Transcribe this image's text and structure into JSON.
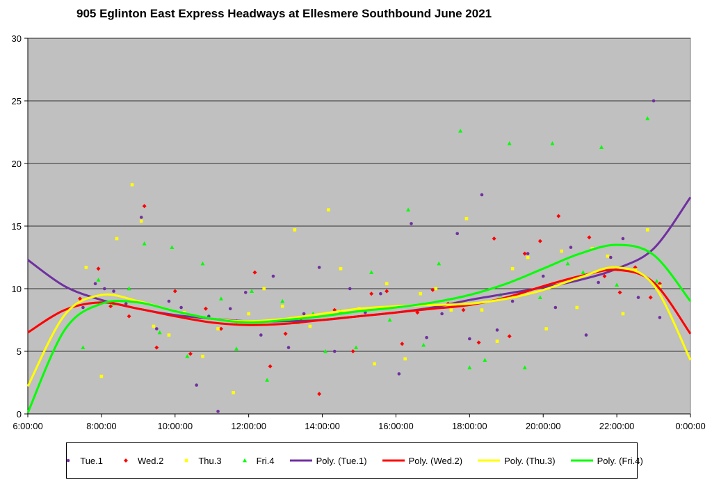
{
  "chart_data": {
    "type": "scatter",
    "title": "905 Eglinton East Express Headways at Ellesmere Southbound June 2021",
    "xlabel": "",
    "ylabel": "",
    "xlim": [
      "6:00:00",
      "0:00:00"
    ],
    "ylim": [
      0,
      30
    ],
    "x_tick_labels": [
      "6:00:00",
      "8:00:00",
      "10:00:00",
      "12:00:00",
      "14:00:00",
      "16:00:00",
      "18:00:00",
      "20:00:00",
      "22:00:00",
      "0:00:00"
    ],
    "y_tick_labels": [
      "0",
      "5",
      "10",
      "15",
      "20",
      "25",
      "30"
    ],
    "grid": "horizontal",
    "legend_position": "bottom",
    "series": [
      {
        "name": "Tue.1",
        "kind": "points",
        "color": "#7030a0",
        "marker": "circle",
        "x": [
          "7:30",
          "7:50",
          "8:05",
          "8:20",
          "8:40",
          "9:05",
          "9:30",
          "9:50",
          "10:10",
          "10:35",
          "10:55",
          "11:10",
          "11:30",
          "11:55",
          "12:20",
          "12:40",
          "13:05",
          "13:30",
          "13:55",
          "14:20",
          "14:45",
          "15:10",
          "15:35",
          "16:05",
          "16:25",
          "16:50",
          "17:15",
          "17:40",
          "18:00",
          "18:20",
          "18:45",
          "19:10",
          "19:35",
          "20:00",
          "20:20",
          "20:45",
          "21:10",
          "21:30",
          "21:50",
          "22:10",
          "22:35",
          "23:00",
          "23:10"
        ],
        "y": [
          8.5,
          10.4,
          10,
          9.8,
          8.8,
          15.7,
          6.8,
          9,
          8.5,
          2.3,
          7.8,
          0.2,
          8.4,
          9.7,
          6.3,
          11,
          5.3,
          8,
          11.7,
          5,
          10,
          8.1,
          9.6,
          3.2,
          15.2,
          6.1,
          8,
          14.4,
          6,
          17.5,
          6.7,
          9,
          12.8,
          11,
          8.5,
          13.3,
          6.3,
          10.5,
          12.5,
          14,
          9.3,
          25,
          7.7
        ]
      },
      {
        "name": "Wed.2",
        "kind": "points",
        "color": "#ff0000",
        "marker": "diamond",
        "x": [
          "7:25",
          "7:55",
          "8:15",
          "8:45",
          "9:10",
          "9:30",
          "10:00",
          "10:25",
          "10:50",
          "11:15",
          "11:40",
          "12:10",
          "12:35",
          "13:00",
          "13:25",
          "13:55",
          "14:20",
          "14:50",
          "15:20",
          "15:45",
          "16:10",
          "16:35",
          "17:00",
          "17:25",
          "17:50",
          "18:15",
          "18:40",
          "19:05",
          "19:30",
          "19:55",
          "20:25",
          "20:50",
          "21:15",
          "21:40",
          "22:05",
          "22:30",
          "22:55",
          "23:10"
        ],
        "y": [
          9.2,
          11.6,
          8.6,
          7.8,
          16.6,
          5.3,
          9.8,
          4.8,
          8.4,
          6.8,
          7.4,
          11.3,
          3.8,
          6.4,
          7.6,
          1.6,
          8.3,
          5,
          9.6,
          9.8,
          5.6,
          8.1,
          9.9,
          8.8,
          8.3,
          5.7,
          14,
          6.2,
          12.8,
          13.8,
          15.8,
          10.8,
          14.1,
          11,
          9.7,
          11.7,
          9.3,
          10.4
        ]
      },
      {
        "name": "Thu.3",
        "kind": "points",
        "color": "#ffff00",
        "marker": "square",
        "x": [
          "7:35",
          "8:00",
          "8:25",
          "8:50",
          "9:05",
          "9:25",
          "9:50",
          "10:15",
          "10:45",
          "11:10",
          "11:35",
          "12:00",
          "12:25",
          "12:55",
          "13:15",
          "13:40",
          "14:10",
          "14:30",
          "15:00",
          "15:25",
          "15:45",
          "16:15",
          "16:40",
          "17:05",
          "17:30",
          "17:55",
          "18:20",
          "18:45",
          "19:10",
          "19:35",
          "20:05",
          "20:30",
          "20:55",
          "21:20",
          "21:45",
          "22:10",
          "22:30",
          "22:50",
          "23:10"
        ],
        "y": [
          11.7,
          3,
          14,
          18.3,
          15.4,
          7,
          6.3,
          8.1,
          4.6,
          6.8,
          1.7,
          8,
          10,
          8.6,
          14.7,
          7,
          16.3,
          11.6,
          8.4,
          4,
          10.4,
          4.4,
          9.6,
          10,
          8.3,
          15.6,
          8.3,
          5.8,
          11.6,
          12.5,
          6.8,
          13,
          8.5,
          13.2,
          12.6,
          8,
          11.5,
          14.7,
          10.2
        ]
      },
      {
        "name": "Fri.4",
        "kind": "points",
        "color": "#00ff00",
        "marker": "triangle",
        "x": [
          "7:30",
          "7:55",
          "8:20",
          "8:45",
          "9:10",
          "9:35",
          "9:55",
          "10:20",
          "10:45",
          "11:15",
          "11:40",
          "12:05",
          "12:30",
          "12:55",
          "13:20",
          "13:45",
          "14:05",
          "14:30",
          "14:55",
          "15:20",
          "15:50",
          "16:20",
          "16:45",
          "17:10",
          "17:35",
          "17:45",
          "18:00",
          "18:25",
          "18:50",
          "19:05",
          "19:30",
          "19:55",
          "20:15",
          "20:40",
          "21:05",
          "21:35",
          "22:00",
          "22:20",
          "22:50",
          "23:05"
        ],
        "y": [
          5.3,
          10.7,
          8.8,
          10,
          13.6,
          6.5,
          13.3,
          4.6,
          12,
          9.2,
          5.2,
          9.8,
          2.7,
          9,
          7.3,
          8,
          5,
          8.2,
          5.3,
          11.3,
          7.5,
          16.3,
          5.5,
          12,
          8.8,
          22.6,
          3.7,
          4.3,
          9.5,
          21.6,
          3.7,
          9.3,
          21.6,
          12,
          11.3,
          21.3,
          10.3,
          11.5,
          23.6,
          10.6
        ]
      },
      {
        "name": "Poly. (Tue.1)",
        "kind": "trend",
        "color": "#7030a0",
        "x": [
          "6:00",
          "7:00",
          "8:00",
          "9:00",
          "10:00",
          "11:00",
          "12:00",
          "13:00",
          "14:00",
          "15:00",
          "16:00",
          "17:00",
          "18:00",
          "19:00",
          "20:00",
          "21:00",
          "22:00",
          "23:00",
          "0:00"
        ],
        "y": [
          12.3,
          10.2,
          9.1,
          8.4,
          7.9,
          7.6,
          7.4,
          7.4,
          7.5,
          7.8,
          8.1,
          8.5,
          9.1,
          9.6,
          10.1,
          10.7,
          11.6,
          13.2,
          17.3
        ]
      },
      {
        "name": "Poly. (Wed.2)",
        "kind": "trend",
        "color": "#ff0000",
        "x": [
          "6:00",
          "7:00",
          "8:00",
          "9:00",
          "10:00",
          "11:00",
          "12:00",
          "13:00",
          "14:00",
          "15:00",
          "16:00",
          "17:00",
          "18:00",
          "19:00",
          "20:00",
          "21:00",
          "22:00",
          "23:00",
          "0:00"
        ],
        "y": [
          6.5,
          8.3,
          8.9,
          8.4,
          7.8,
          7.3,
          7.1,
          7.2,
          7.5,
          7.8,
          8.1,
          8.4,
          8.7,
          9.3,
          10.2,
          11.0,
          11.5,
          10.5,
          6.4
        ]
      },
      {
        "name": "Poly. (Thu.3)",
        "kind": "trend",
        "color": "#ffff00",
        "x": [
          "6:00",
          "7:00",
          "8:00",
          "9:00",
          "10:00",
          "11:00",
          "12:00",
          "13:00",
          "14:00",
          "15:00",
          "16:00",
          "17:00",
          "18:00",
          "19:00",
          "20:00",
          "21:00",
          "22:00",
          "23:00",
          "0:00"
        ],
        "y": [
          2.2,
          7.9,
          9.5,
          9.0,
          8.2,
          7.6,
          7.4,
          7.6,
          8.0,
          8.4,
          8.6,
          8.7,
          8.8,
          9.2,
          9.9,
          10.9,
          11.7,
          10.3,
          4.3
        ]
      },
      {
        "name": "Poly. (Fri.4)",
        "kind": "trend",
        "color": "#00ff00",
        "x": [
          "6:00",
          "7:00",
          "8:00",
          "9:00",
          "10:00",
          "11:00",
          "12:00",
          "13:00",
          "14:00",
          "15:00",
          "16:00",
          "17:00",
          "18:00",
          "19:00",
          "20:00",
          "21:00",
          "22:00",
          "23:00",
          "0:00"
        ],
        "y": [
          0.1,
          6.7,
          8.8,
          8.9,
          8.2,
          7.6,
          7.3,
          7.5,
          7.8,
          8.2,
          8.5,
          8.9,
          9.5,
          10.4,
          11.6,
          12.8,
          13.5,
          12.7,
          9.0
        ]
      }
    ]
  }
}
